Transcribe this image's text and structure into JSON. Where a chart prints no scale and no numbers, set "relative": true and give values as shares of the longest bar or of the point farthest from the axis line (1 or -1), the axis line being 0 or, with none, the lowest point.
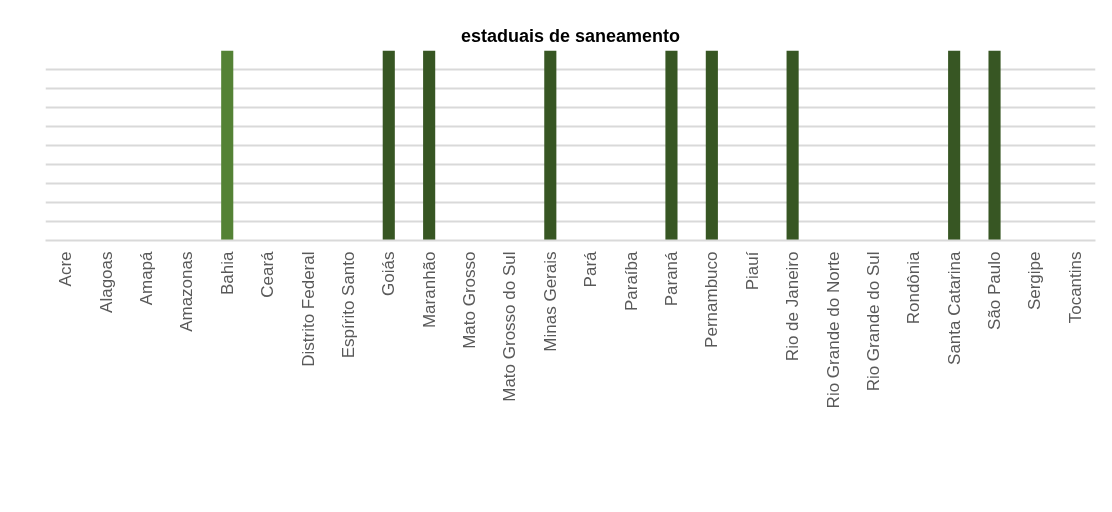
{
  "chart_data": {
    "type": "bar",
    "title": "estaduais de saneamento",
    "relative": true,
    "categories": [
      "Acre",
      "Alagoas",
      "Amapá",
      "Amazonas",
      "Bahia",
      "Ceará",
      "Distrito Federal",
      "Espírito Santo",
      "Goiás",
      "Maranhão",
      "Mato Grosso",
      "Mato Grosso do Sul",
      "Minas Gerais",
      "Pará",
      "Paraíba",
      "Paraná",
      "Pernambuco",
      "Piauí",
      "Rio de Janeiro",
      "Rio Grande do Norte",
      "Rio Grande do Sul",
      "Rondônia",
      "Santa Catarina",
      "São Paulo",
      "Sergipe",
      "Tocantins"
    ],
    "values": [
      0,
      0,
      0,
      0,
      1,
      0,
      0,
      0,
      1,
      1,
      0,
      0,
      1,
      0,
      0,
      1,
      1,
      0,
      1,
      0,
      0,
      0,
      1,
      1,
      0,
      0
    ],
    "colors": [
      "#375623",
      "#375623",
      "#375623",
      "#375623",
      "#548235",
      "#375623",
      "#375623",
      "#375623",
      "#375623",
      "#375623",
      "#375623",
      "#375623",
      "#375623",
      "#375623",
      "#375623",
      "#375623",
      "#375623",
      "#375623",
      "#375623",
      "#375623",
      "#375623",
      "#375623",
      "#375623",
      "#375623",
      "#375623",
      "#375623"
    ],
    "grid": "y"
  }
}
